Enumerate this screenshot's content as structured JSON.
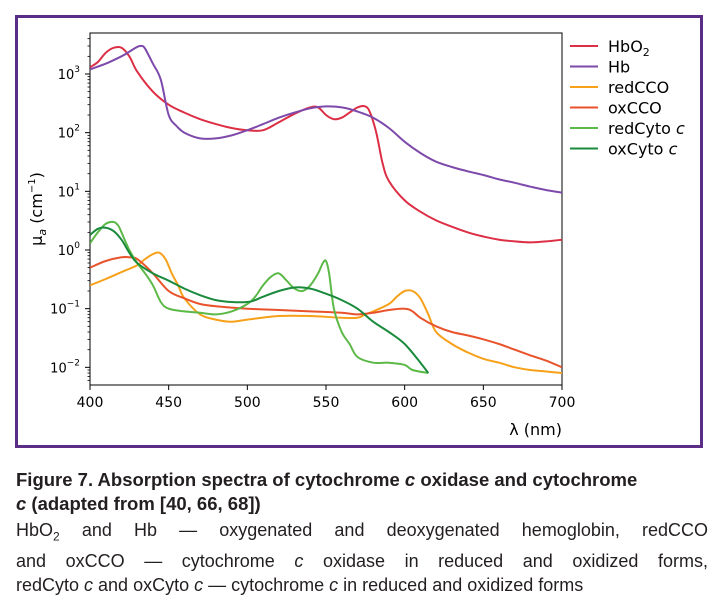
{
  "chart_data": {
    "type": "line",
    "xlabel": "λ (nm)",
    "ylabel": "μa (cm⁻¹)",
    "ylabel_parts": {
      "symbol": "μ",
      "sub": "a",
      "unit": "(cm",
      "sup": "−1",
      "close": ")"
    },
    "xlim": [
      400,
      700
    ],
    "ylim": [
      0.005,
      5000
    ],
    "yscale": "log",
    "grid": false,
    "legend": "outside-right",
    "x_ticks": [
      "400",
      "450",
      "500",
      "550",
      "600",
      "650",
      "700"
    ],
    "y_ticks": [
      {
        "value": 0.01,
        "label": "10",
        "exp": "−2"
      },
      {
        "value": 0.1,
        "label": "10",
        "exp": "−1"
      },
      {
        "value": 1,
        "label": "10",
        "exp": "0"
      },
      {
        "value": 10,
        "label": "10",
        "exp": "1"
      },
      {
        "value": 100,
        "label": "10",
        "exp": "2"
      },
      {
        "value": 1000,
        "label": "10",
        "exp": "3"
      }
    ],
    "series": [
      {
        "name": "HbO2",
        "label_base": "HbO",
        "label_sub": "2",
        "label_italic": "",
        "color": "#dc2f45",
        "x": [
          400,
          405,
          410,
          415,
          420,
          425,
          430,
          440,
          450,
          460,
          470,
          480,
          490,
          500,
          510,
          520,
          530,
          540,
          545,
          550,
          555,
          560,
          565,
          570,
          575,
          578,
          582,
          586,
          590,
          600,
          610,
          620,
          630,
          640,
          650,
          660,
          670,
          680,
          690,
          700
        ],
        "y": [
          1300,
          1600,
          2300,
          2800,
          2800,
          2000,
          1100,
          500,
          300,
          220,
          170,
          140,
          120,
          110,
          110,
          150,
          210,
          270,
          270,
          200,
          170,
          180,
          220,
          270,
          280,
          220,
          100,
          30,
          15,
          7,
          4.5,
          3.2,
          2.5,
          2.0,
          1.7,
          1.5,
          1.4,
          1.35,
          1.4,
          1.5
        ]
      },
      {
        "name": "Hb",
        "label_base": "Hb",
        "label_sub": "",
        "label_italic": "",
        "color": "#7d4aab",
        "x": [
          400,
          410,
          420,
          425,
          430,
          433,
          435,
          440,
          445,
          450,
          455,
          460,
          470,
          480,
          490,
          500,
          510,
          520,
          530,
          540,
          550,
          560,
          570,
          580,
          590,
          600,
          610,
          620,
          630,
          640,
          650,
          660,
          670,
          680,
          690,
          700
        ],
        "y": [
          1200,
          1500,
          2000,
          2400,
          2900,
          3000,
          2700,
          1500,
          800,
          200,
          130,
          100,
          80,
          80,
          90,
          110,
          140,
          180,
          220,
          260,
          280,
          270,
          230,
          180,
          120,
          70,
          45,
          32,
          26,
          22,
          19,
          16,
          14,
          12,
          10.5,
          9.5
        ]
      },
      {
        "name": "redCCO",
        "label_base": "redCCO",
        "label_sub": "",
        "label_italic": "",
        "color": "#f7a11a",
        "x": [
          400,
          410,
          420,
          430,
          435,
          440,
          444,
          448,
          452,
          456,
          460,
          470,
          480,
          490,
          500,
          520,
          540,
          560,
          570,
          575,
          580,
          590,
          595,
          600,
          605,
          610,
          615,
          620,
          630,
          640,
          650,
          660,
          670,
          680,
          690,
          700
        ],
        "y": [
          0.25,
          0.32,
          0.42,
          0.55,
          0.7,
          0.85,
          0.9,
          0.7,
          0.4,
          0.25,
          0.15,
          0.08,
          0.065,
          0.06,
          0.065,
          0.075,
          0.075,
          0.07,
          0.07,
          0.08,
          0.09,
          0.12,
          0.16,
          0.2,
          0.2,
          0.15,
          0.08,
          0.04,
          0.025,
          0.018,
          0.014,
          0.012,
          0.01,
          0.009,
          0.0085,
          0.008
        ]
      },
      {
        "name": "oxCCO",
        "label_base": "oxCCO",
        "label_sub": "",
        "label_italic": "",
        "color": "#e8532b",
        "x": [
          400,
          410,
          420,
          425,
          430,
          440,
          450,
          460,
          470,
          480,
          500,
          520,
          540,
          560,
          570,
          580,
          590,
          600,
          605,
          610,
          620,
          630,
          640,
          650,
          660,
          670,
          680,
          690,
          700
        ],
        "y": [
          0.5,
          0.65,
          0.75,
          0.75,
          0.7,
          0.4,
          0.2,
          0.15,
          0.12,
          0.11,
          0.1,
          0.095,
          0.09,
          0.085,
          0.08,
          0.085,
          0.095,
          0.1,
          0.09,
          0.07,
          0.05,
          0.04,
          0.035,
          0.03,
          0.025,
          0.02,
          0.016,
          0.013,
          0.01
        ]
      },
      {
        "name": "redCyto c",
        "label_base": "redCyto ",
        "label_sub": "",
        "label_italic": "c",
        "color": "#5cb947",
        "x": [
          400,
          405,
          410,
          415,
          418,
          420,
          425,
          430,
          435,
          440,
          445,
          450,
          460,
          470,
          480,
          490,
          500,
          505,
          510,
          515,
          520,
          525,
          530,
          535,
          540,
          545,
          548,
          550,
          552,
          555,
          560,
          565,
          570,
          580,
          590,
          600,
          605,
          615
        ],
        "y": [
          1.3,
          2.0,
          2.8,
          3.0,
          2.6,
          2.0,
          1.0,
          0.6,
          0.4,
          0.25,
          0.13,
          0.1,
          0.09,
          0.085,
          0.08,
          0.09,
          0.12,
          0.16,
          0.25,
          0.35,
          0.4,
          0.3,
          0.22,
          0.2,
          0.25,
          0.4,
          0.6,
          0.65,
          0.4,
          0.1,
          0.04,
          0.025,
          0.015,
          0.012,
          0.012,
          0.011,
          0.009,
          0.008
        ]
      },
      {
        "name": "oxCyto c",
        "label_base": "oxCyto ",
        "label_sub": "",
        "label_italic": "c",
        "color": "#1a8a3c",
        "x": [
          400,
          405,
          410,
          415,
          420,
          425,
          430,
          440,
          450,
          460,
          470,
          480,
          490,
          500,
          505,
          510,
          520,
          530,
          540,
          550,
          560,
          570,
          580,
          590,
          600,
          610,
          615
        ],
        "y": [
          1.8,
          2.3,
          2.4,
          2.1,
          1.5,
          0.9,
          0.6,
          0.4,
          0.3,
          0.22,
          0.17,
          0.14,
          0.13,
          0.13,
          0.14,
          0.16,
          0.2,
          0.23,
          0.22,
          0.18,
          0.14,
          0.1,
          0.06,
          0.04,
          0.025,
          0.012,
          0.008
        ]
      }
    ]
  },
  "caption": {
    "title_line1": "Figure 7. Absorption spectra of cytochrome ",
    "title_italic1": "c",
    "title_line1b": " oxidase and cytochrome",
    "title_italic2": "c",
    "title_line2": " (adapted from [40, 66, 68])",
    "body_1a": "HbO",
    "body_1sub": "2",
    "body_1b": " and Hb — oxygenated and deoxygenated hemoglobin, redCCO",
    "body_2a": "and oxCCO — cytochrome ",
    "body_2i": "c",
    "body_2b": " oxidase in reduced and oxidized forms,",
    "body_3a": "redCyto ",
    "body_3i1": "c",
    "body_3b": " and oxCyto ",
    "body_3i2": "c",
    "body_3c": " — cytochrome ",
    "body_3i3": "c",
    "body_3d": " in reduced and oxidized forms"
  }
}
